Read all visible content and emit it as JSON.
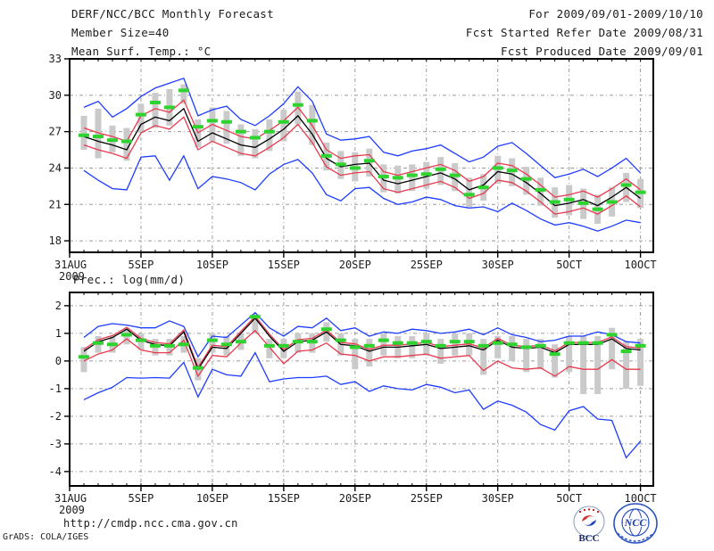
{
  "header": {
    "title": "DERF/NCC/BCC Monthly Forecast",
    "member_size": "Member Size=40",
    "right_lines": [
      "For 2009/09/01-2009/10/10",
      "Fcst Started Refer Date 2009/08/31",
      "Fcst Produced Date 2009/09/01"
    ]
  },
  "footer": {
    "url": "http://cmdp.ncc.cma.gov.cn",
    "credit": "GrADS: COLA/IGES",
    "bcc_label": "BCC",
    "ncc_label": "NCC"
  },
  "colors": {
    "envelope": "#1e3cff",
    "spread": "#e83a4e",
    "mean": "#000000",
    "marker": "#2fd32f",
    "bar": "#cacaca",
    "grid": "#9b9b9b",
    "axis": "#000000"
  },
  "chart_data": [
    {
      "type": "line",
      "title": "Mean Surf. Temp.: °C",
      "start_day": 1,
      "xlim_days": [
        0,
        40.9
      ],
      "ylim": [
        17.05,
        33.0
      ],
      "yticks": [
        18,
        21,
        24,
        27,
        30,
        33
      ],
      "x_ticks": [
        {
          "day": 0,
          "label": "31AUG",
          "sub": "2009"
        },
        {
          "day": 5,
          "label": "5SEP"
        },
        {
          "day": 10,
          "label": "10SEP"
        },
        {
          "day": 15,
          "label": "15SEP"
        },
        {
          "day": 20,
          "label": "20SEP"
        },
        {
          "day": 25,
          "label": "25SEP"
        },
        {
          "day": 30,
          "label": "30SEP"
        },
        {
          "day": 35,
          "label": "5OCT"
        },
        {
          "day": 40,
          "label": "10OCT"
        }
      ],
      "bars": {
        "name": "spread-bar",
        "hi": [
          28.3,
          28.9,
          27.5,
          27.3,
          29.3,
          30.2,
          30.5,
          30.9,
          28.0,
          29.0,
          28.7,
          27.6,
          27.2,
          28.0,
          28.8,
          30.3,
          29.2,
          26.1,
          25.4,
          25.3,
          25.6,
          24.3,
          24.2,
          24.3,
          24.5,
          24.9,
          24.4,
          23.2,
          23.5,
          25.0,
          24.8,
          24.1,
          23.2,
          22.4,
          22.6,
          22.3,
          21.8,
          22.4,
          23.6,
          23.1
        ],
        "lo": [
          25.5,
          24.8,
          25.3,
          24.6,
          26.9,
          27.3,
          27.5,
          29.3,
          25.7,
          26.2,
          26.0,
          25.0,
          24.8,
          25.4,
          26.2,
          27.6,
          25.9,
          23.8,
          23.1,
          22.9,
          23.3,
          22.0,
          21.9,
          22.1,
          22.3,
          22.6,
          22.1,
          20.8,
          21.3,
          22.7,
          22.5,
          21.8,
          20.9,
          19.9,
          20.1,
          19.8,
          19.4,
          20.0,
          21.2,
          20.7
        ]
      },
      "markers": {
        "name": "daily-green-marker",
        "values": [
          26.7,
          26.6,
          26.3,
          26.2,
          28.4,
          29.4,
          29.0,
          30.4,
          27.4,
          27.9,
          27.8,
          27.0,
          26.5,
          27.0,
          27.8,
          29.2,
          27.9,
          25.0,
          24.3,
          24.0,
          24.6,
          23.3,
          23.2,
          23.4,
          23.5,
          23.9,
          23.4,
          21.8,
          22.4,
          24.0,
          23.8,
          23.1,
          22.2,
          21.2,
          21.4,
          21.1,
          20.6,
          21.2,
          22.6,
          22.0
        ]
      },
      "series": [
        {
          "name": "ensemble-max",
          "role": "envelope",
          "values": [
            29.0,
            29.5,
            28.2,
            28.9,
            29.9,
            30.6,
            31.0,
            31.4,
            28.3,
            28.8,
            29.1,
            28.0,
            27.5,
            28.3,
            29.3,
            30.7,
            29.5,
            26.8,
            26.3,
            26.4,
            26.6,
            25.3,
            25.0,
            25.4,
            25.6,
            25.9,
            25.2,
            24.5,
            24.9,
            25.8,
            26.1,
            25.2,
            24.2,
            23.2,
            23.5,
            23.9,
            23.3,
            24.0,
            24.8,
            23.6
          ]
        },
        {
          "name": "mean-plus-spread",
          "role": "spread",
          "values": [
            27.3,
            26.9,
            26.6,
            26.2,
            28.3,
            28.9,
            28.6,
            29.6,
            26.9,
            27.6,
            27.1,
            26.6,
            26.4,
            27.1,
            27.9,
            29.0,
            27.5,
            25.5,
            24.8,
            25.0,
            25.1,
            23.7,
            23.4,
            23.7,
            24.0,
            24.3,
            23.8,
            22.9,
            23.3,
            24.4,
            24.2,
            23.5,
            22.6,
            21.6,
            21.8,
            22.1,
            21.6,
            22.3,
            23.1,
            22.2
          ]
        },
        {
          "name": "ensemble-mean",
          "role": "mean",
          "values": [
            26.6,
            26.2,
            25.9,
            25.5,
            27.6,
            28.2,
            27.9,
            28.9,
            26.2,
            26.9,
            26.4,
            25.9,
            25.7,
            26.4,
            27.2,
            28.3,
            26.8,
            24.8,
            24.1,
            24.3,
            24.4,
            23.0,
            22.7,
            23.0,
            23.3,
            23.6,
            23.1,
            22.2,
            22.6,
            23.7,
            23.5,
            22.8,
            21.9,
            20.9,
            21.1,
            21.4,
            20.9,
            21.6,
            22.4,
            21.5
          ]
        },
        {
          "name": "mean-minus-spread",
          "role": "spread",
          "values": [
            25.9,
            25.5,
            25.2,
            24.8,
            26.9,
            27.5,
            27.2,
            28.2,
            25.5,
            26.2,
            25.7,
            25.2,
            25.0,
            25.7,
            26.5,
            27.6,
            26.1,
            24.1,
            23.4,
            23.6,
            23.7,
            22.3,
            22.0,
            22.3,
            22.6,
            22.9,
            22.4,
            21.5,
            21.9,
            23.0,
            22.8,
            22.1,
            21.2,
            20.2,
            20.4,
            20.7,
            20.2,
            20.9,
            21.7,
            20.8
          ]
        },
        {
          "name": "ensemble-min",
          "role": "envelope",
          "values": [
            23.8,
            23.0,
            22.3,
            22.2,
            24.9,
            25.0,
            23.0,
            25.0,
            22.3,
            23.3,
            23.1,
            22.8,
            22.2,
            23.5,
            24.3,
            24.7,
            23.6,
            21.8,
            21.3,
            22.3,
            22.4,
            21.5,
            21.0,
            21.2,
            21.6,
            21.4,
            20.9,
            20.7,
            20.8,
            20.4,
            21.1,
            20.5,
            19.8,
            19.3,
            19.5,
            19.2,
            18.8,
            19.2,
            19.7,
            19.5
          ]
        }
      ]
    },
    {
      "type": "line",
      "title": "Prec.: log(mm/d)",
      "start_day": 1,
      "xlim_days": [
        0,
        40.9
      ],
      "ylim": [
        -4.52,
        2.48
      ],
      "yticks": [
        -4,
        -3,
        -2,
        -1,
        0,
        1,
        2
      ],
      "x_ticks": [
        {
          "day": 0,
          "label": "31AUG",
          "sub": "2009"
        },
        {
          "day": 5,
          "label": "5SEP"
        },
        {
          "day": 10,
          "label": "10SEP"
        },
        {
          "day": 15,
          "label": "15SEP"
        },
        {
          "day": 20,
          "label": "20SEP"
        },
        {
          "day": 25,
          "label": "25SEP"
        },
        {
          "day": 30,
          "label": "30SEP"
        },
        {
          "day": 35,
          "label": "5OCT"
        },
        {
          "day": 40,
          "label": "10OCT"
        }
      ],
      "bars": {
        "name": "spread-bar",
        "hi": [
          0.5,
          0.9,
          0.9,
          1.2,
          1.0,
          0.8,
          0.8,
          0.9,
          0.1,
          1.0,
          0.9,
          1.0,
          1.7,
          0.8,
          0.8,
          1.0,
          1.0,
          1.4,
          1.0,
          0.8,
          0.8,
          1.0,
          0.9,
          0.9,
          1.0,
          0.8,
          1.0,
          1.0,
          0.8,
          0.9,
          0.9,
          0.8,
          0.8,
          0.6,
          0.9,
          0.9,
          0.9,
          1.2,
          0.7,
          0.8
        ],
        "lo": [
          -0.4,
          0.3,
          0.3,
          0.6,
          0.4,
          0.2,
          0.2,
          0.3,
          -0.7,
          0.3,
          0.2,
          0.4,
          1.0,
          0.1,
          0.1,
          0.3,
          0.3,
          0.7,
          0.2,
          -0.3,
          -0.2,
          0.2,
          0.1,
          0.1,
          0.2,
          -0.1,
          0.2,
          0.2,
          -0.5,
          0.1,
          0.0,
          -0.4,
          -0.3,
          -0.6,
          -0.4,
          -1.2,
          -1.2,
          -0.3,
          -1.0,
          -0.9
        ]
      },
      "markers": {
        "name": "daily-green-marker",
        "values": [
          0.15,
          0.65,
          0.6,
          0.95,
          0.75,
          0.55,
          0.55,
          0.6,
          -0.25,
          0.75,
          0.6,
          0.7,
          1.6,
          0.55,
          0.55,
          0.7,
          0.7,
          1.15,
          0.75,
          0.5,
          0.55,
          0.75,
          0.65,
          0.65,
          0.7,
          0.55,
          0.7,
          0.7,
          0.55,
          0.65,
          0.6,
          0.5,
          0.55,
          0.25,
          0.65,
          0.65,
          0.65,
          0.95,
          0.35,
          0.55
        ]
      },
      "series": [
        {
          "name": "ensemble-max",
          "role": "envelope",
          "values": [
            0.85,
            1.25,
            1.35,
            1.3,
            1.2,
            1.2,
            1.45,
            1.25,
            0.15,
            0.9,
            0.85,
            1.3,
            1.75,
            1.2,
            0.9,
            1.25,
            1.2,
            1.55,
            1.1,
            1.2,
            0.9,
            1.05,
            1.0,
            1.15,
            1.1,
            1.0,
            1.05,
            1.15,
            0.95,
            1.2,
            0.95,
            0.85,
            0.7,
            0.75,
            0.9,
            0.9,
            1.05,
            0.95,
            0.7,
            0.65
          ]
        },
        {
          "name": "mean-plus-spread",
          "role": "spread",
          "values": [
            0.42,
            0.77,
            0.92,
            1.22,
            0.82,
            0.67,
            0.62,
            1.12,
            -0.23,
            0.57,
            0.52,
            1.07,
            1.62,
            0.97,
            0.42,
            0.77,
            0.82,
            1.12,
            0.67,
            0.62,
            0.42,
            0.57,
            0.57,
            0.62,
            0.67,
            0.52,
            0.57,
            0.62,
            0.47,
            0.82,
            0.57,
            0.52,
            0.57,
            0.37,
            0.67,
            0.67,
            0.67,
            0.87,
            0.52,
            0.47
          ]
        },
        {
          "name": "ensemble-mean",
          "role": "mean",
          "values": [
            0.35,
            0.7,
            0.85,
            1.15,
            0.75,
            0.6,
            0.55,
            1.05,
            -0.3,
            0.5,
            0.45,
            1.0,
            1.55,
            0.9,
            0.35,
            0.7,
            0.75,
            1.05,
            0.6,
            0.55,
            0.35,
            0.5,
            0.5,
            0.55,
            0.6,
            0.45,
            0.5,
            0.55,
            0.4,
            0.75,
            0.5,
            0.45,
            0.5,
            0.3,
            0.6,
            0.6,
            0.6,
            0.8,
            0.45,
            0.4
          ]
        },
        {
          "name": "mean-minus-spread",
          "role": "spread",
          "values": [
            0.0,
            0.25,
            0.4,
            0.8,
            0.4,
            0.3,
            0.3,
            0.75,
            -0.55,
            0.2,
            0.15,
            0.65,
            1.1,
            0.5,
            -0.1,
            0.35,
            0.4,
            0.65,
            0.25,
            0.2,
            0.0,
            0.15,
            0.15,
            0.2,
            0.25,
            0.1,
            0.15,
            0.2,
            -0.35,
            0.0,
            -0.25,
            -0.3,
            -0.25,
            -0.55,
            -0.2,
            -0.3,
            -0.3,
            0.05,
            -0.3,
            -0.3
          ]
        },
        {
          "name": "ensemble-min",
          "role": "envelope",
          "values": [
            -1.4,
            -1.15,
            -0.95,
            -0.6,
            -0.62,
            -0.6,
            -0.62,
            -0.05,
            -1.3,
            -0.3,
            -0.5,
            -0.55,
            0.3,
            -0.75,
            -0.65,
            -0.6,
            -0.6,
            -0.55,
            -0.85,
            -0.75,
            -1.1,
            -0.9,
            -1.0,
            -1.05,
            -0.85,
            -0.95,
            -1.15,
            -1.05,
            -1.75,
            -1.45,
            -1.6,
            -1.85,
            -2.3,
            -2.5,
            -1.8,
            -1.65,
            -2.1,
            -2.15,
            -3.5,
            -2.9
          ]
        }
      ]
    }
  ]
}
